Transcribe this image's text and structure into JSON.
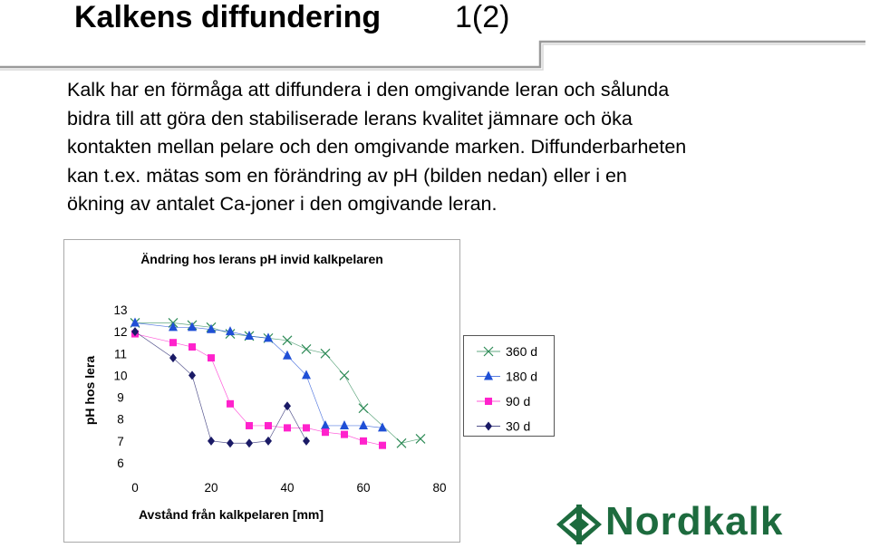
{
  "slide": {
    "title": "Kalkens diffundering",
    "page": "1(2)",
    "body_lines": [
      "Kalk har en förmåga att diffundera i den omgivande leran och sålunda",
      "bidra till att göra den stabiliserade lerans kvalitet jämnare och öka",
      "kontakten mellan pelare och den omgivande marken. Diffunderbarheten",
      "kan t.ex. mätas som en förändring av pH (bilden nedan) eller i en",
      "ökning av antalet Ca-joner i den omgivande leran."
    ],
    "bullet": "."
  },
  "logo": {
    "text": "Nordkalk",
    "color": "#1d6b3e"
  },
  "chart_data": {
    "type": "scatter",
    "title": "Ändring hos lerans pH invid kalkpelaren",
    "xlabel": "Avstånd från kalkpelaren [mm]",
    "ylabel": "pH hos lera",
    "xlim": [
      0,
      80
    ],
    "ylim": [
      6,
      13
    ],
    "xticks": [
      "0",
      "20",
      "40",
      "60",
      "80"
    ],
    "yticks": [
      "13",
      "12",
      "11",
      "10",
      "9",
      "8",
      "7",
      "6"
    ],
    "grid": false,
    "legend_position": "right",
    "series": [
      {
        "name": "360 d",
        "marker": "x",
        "color": "#2e8b57",
        "x": [
          0,
          10,
          15,
          20,
          25,
          30,
          35,
          40,
          45,
          50,
          55,
          60,
          70,
          75
        ],
        "y": [
          12.4,
          12.4,
          12.3,
          12.2,
          11.9,
          11.8,
          11.7,
          11.6,
          11.2,
          11.0,
          10.0,
          8.5,
          6.9,
          7.1
        ]
      },
      {
        "name": "180 d",
        "marker": "triangle",
        "color": "#1f4fd6",
        "x": [
          0,
          10,
          15,
          20,
          25,
          30,
          35,
          40,
          45,
          50,
          55,
          60,
          65
        ],
        "y": [
          12.4,
          12.2,
          12.2,
          12.1,
          12.0,
          11.8,
          11.7,
          10.9,
          10.0,
          7.7,
          7.7,
          7.7,
          7.6
        ]
      },
      {
        "name": "90 d",
        "marker": "square",
        "color": "#ff22cc",
        "x": [
          0,
          10,
          15,
          20,
          25,
          30,
          35,
          40,
          45,
          50,
          55,
          60,
          65
        ],
        "y": [
          11.9,
          11.5,
          11.3,
          10.8,
          8.7,
          7.7,
          7.7,
          7.6,
          7.6,
          7.4,
          7.3,
          7.0,
          6.8
        ]
      },
      {
        "name": "30 d",
        "marker": "diamond",
        "color": "#1a1a66",
        "x": [
          0,
          10,
          15,
          20,
          25,
          30,
          35,
          40,
          45
        ],
        "y": [
          12.0,
          10.8,
          10.0,
          7.0,
          6.9,
          6.9,
          7.0,
          8.6,
          7.0
        ]
      }
    ]
  }
}
